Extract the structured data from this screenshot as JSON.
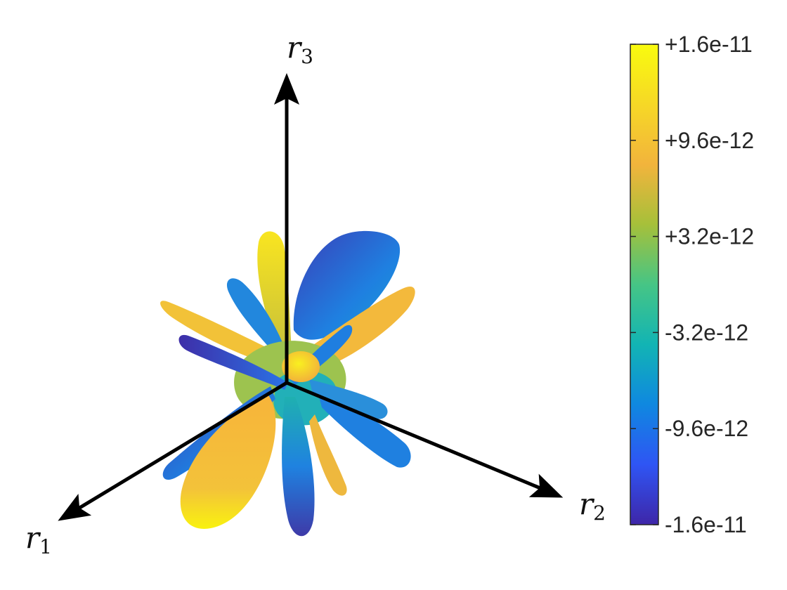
{
  "axes": [
    {
      "id": "r1",
      "base": "r",
      "sub": "1"
    },
    {
      "id": "r2",
      "base": "r",
      "sub": "2"
    },
    {
      "id": "r3",
      "base": "r",
      "sub": "3"
    }
  ],
  "colorbar": {
    "min": -1.6e-11,
    "max": 1.6e-11,
    "tick_labels": [
      "+1.6e-11",
      "+9.6e-12",
      "+3.2e-12",
      "-3.2e-12",
      "-9.6e-12",
      "-1.6e-11"
    ],
    "colormap": [
      "#3e26a8",
      "#2f55f4",
      "#0f88e0",
      "#12b4b4",
      "#46c585",
      "#a6c03a",
      "#f2b43c",
      "#f6d826",
      "#f9fb0e"
    ]
  },
  "colors": {
    "yellow": "#f9f20f",
    "orange": "#f7b43a",
    "green": "#9ec64a",
    "teal": "#1fb0b0",
    "blue": "#1f82e0",
    "indigo": "#3e2ea8"
  }
}
